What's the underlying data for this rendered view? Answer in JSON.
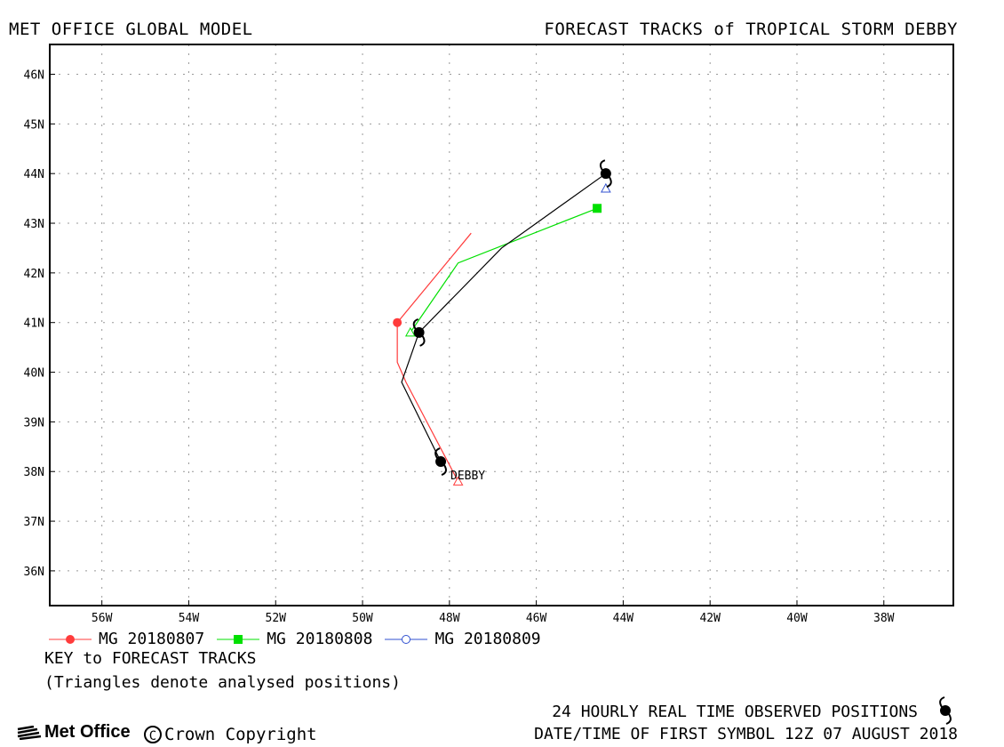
{
  "header": {
    "left": "MET OFFICE GLOBAL MODEL",
    "right": "FORECAST TRACKS of TROPICAL STORM DEBBY"
  },
  "map": {
    "lat_labels": [
      "46N",
      "45N",
      "44N",
      "43N",
      "42N",
      "41N",
      "40N",
      "39N",
      "38N",
      "37N",
      "36N"
    ],
    "lon_labels": [
      "56W",
      "54W",
      "52W",
      "50W",
      "48W",
      "46W",
      "44W",
      "42W",
      "40W",
      "38W"
    ],
    "storm_label": "DEBBY"
  },
  "legend": [
    {
      "label": "MG 20180807",
      "color": "#ff3b3b",
      "marker": "circle"
    },
    {
      "label": "MG 20180808",
      "color": "#00e000",
      "marker": "square"
    },
    {
      "label": "MG 20180809",
      "color": "#3050d0",
      "marker": "open-circle"
    }
  ],
  "key": {
    "title": "KEY to FORECAST TRACKS",
    "note": "(Triangles denote analysed positions)"
  },
  "footer": {
    "observed": "24 HOURLY REAL TIME OBSERVED POSITIONS",
    "datetime": "DATE/TIME OF FIRST SYMBOL 12Z 07 AUGUST 2018",
    "logo": "Met Office",
    "copyright": "Crown Copyright",
    "copyright_symbol": "C"
  },
  "chart_data": {
    "type": "map-tracks",
    "xlim": [
      -57.2,
      -36.4
    ],
    "ylim": [
      35.3,
      46.6
    ],
    "grid": true,
    "tracks": [
      {
        "name": "MG 20180807",
        "color": "#ff3b3b",
        "points": [
          [
            -47.8,
            37.8
          ],
          [
            -49.0,
            39.8
          ],
          [
            -49.2,
            40.2
          ],
          [
            -49.2,
            41.0
          ],
          [
            -47.5,
            42.8
          ]
        ],
        "marker_at": [
          -49.2,
          41.0
        ]
      },
      {
        "name": "MG 20180808",
        "color": "#00e000",
        "points": [
          [
            -48.9,
            40.8
          ],
          [
            -47.8,
            42.2
          ],
          [
            -44.6,
            43.3
          ]
        ],
        "marker_at": [
          -44.6,
          43.3
        ]
      },
      {
        "name": "MG 20180809",
        "color": "#3050d0",
        "points": [
          [
            -44.4,
            43.7
          ]
        ],
        "marker_at": null
      }
    ],
    "observed": {
      "color": "#000000",
      "points": [
        [
          -48.2,
          38.2
        ],
        [
          -49.1,
          39.8
        ],
        [
          -48.7,
          40.8
        ],
        [
          -46.8,
          42.5
        ],
        [
          -44.4,
          44.0
        ]
      ],
      "symbols": [
        [
          -48.2,
          38.2
        ],
        [
          -48.7,
          40.8
        ],
        [
          -44.4,
          44.0
        ]
      ]
    },
    "analysed_triangles": [
      {
        "pos": [
          -47.8,
          37.8
        ],
        "color": "#ff3b3b"
      },
      {
        "pos": [
          -48.9,
          40.8
        ],
        "color": "#00e000"
      },
      {
        "pos": [
          -44.4,
          43.7
        ],
        "color": "#3050d0"
      }
    ]
  }
}
